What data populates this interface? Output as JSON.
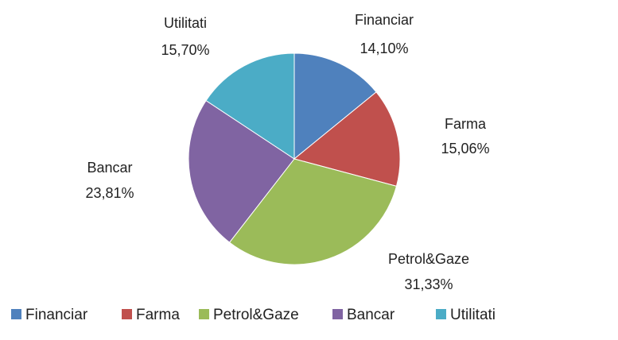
{
  "chart_data": {
    "type": "pie",
    "categories": [
      "Financiar",
      "Farma",
      "Petrol&Gaze",
      "Bancar",
      "Utilitati"
    ],
    "values": [
      14.1,
      15.06,
      31.33,
      23.81,
      15.7
    ],
    "value_labels": [
      "14,10%",
      "15,06%",
      "31,33%",
      "23,81%",
      "15,70%"
    ],
    "colors": [
      "#4f81bd",
      "#c0504d",
      "#9bbb59",
      "#8064a2",
      "#4bacc6"
    ],
    "legend": "bottom"
  }
}
